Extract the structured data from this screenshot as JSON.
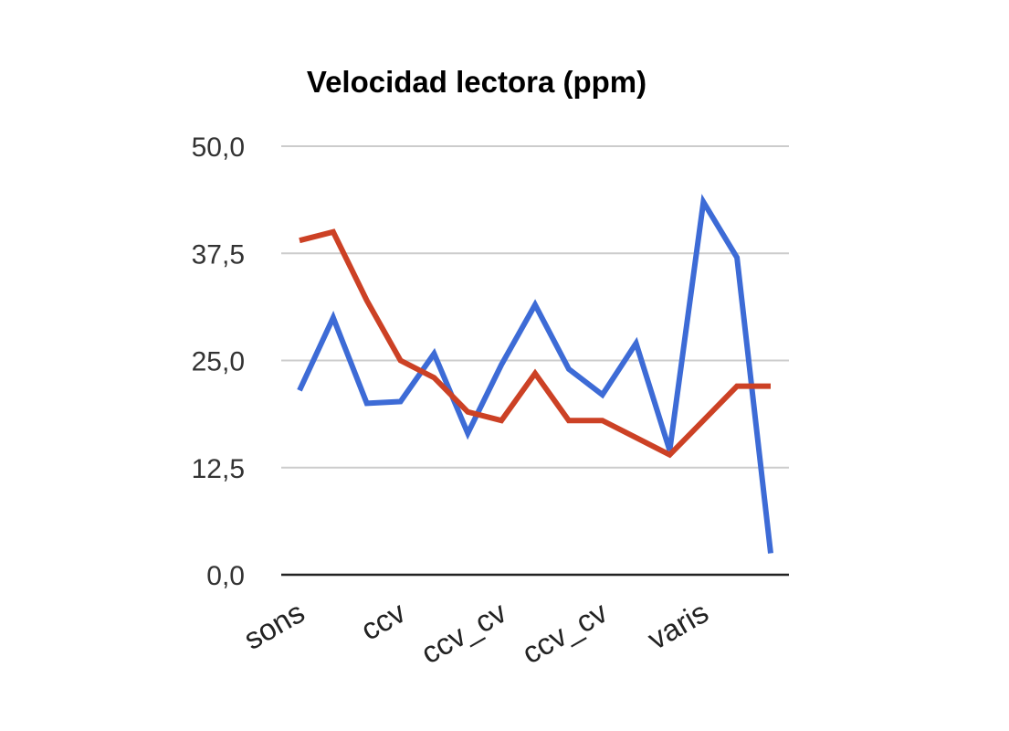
{
  "chart_data": {
    "type": "line",
    "title": "Velocidad lectora (ppm)",
    "xlabel": "",
    "ylabel": "",
    "ylim": [
      0,
      50
    ],
    "yticks": [
      "0,0",
      "12,5",
      "25,0",
      "37,5",
      "50,0"
    ],
    "ytick_values": [
      0,
      12.5,
      25,
      37.5,
      50
    ],
    "categories": [
      "sons",
      "",
      "",
      "ccv",
      "",
      "",
      "ccv_cv",
      "",
      "",
      "ccv_cv",
      "",
      "",
      "varis",
      "",
      ""
    ],
    "category_labels": [
      {
        "index": 0,
        "text": "sons"
      },
      {
        "index": 3,
        "text": "ccv"
      },
      {
        "index": 6,
        "text": "ccv_cv"
      },
      {
        "index": 9,
        "text": "ccv_cv"
      },
      {
        "index": 12,
        "text": "varis"
      }
    ],
    "grid": true,
    "series": [
      {
        "color": "#3d6bd6",
        "values": [
          21.5,
          30,
          20,
          20.2,
          25.8,
          16.5,
          24.5,
          31.5,
          24,
          21,
          27,
          14.5,
          43.5,
          37,
          2.5
        ]
      },
      {
        "color": "#cc4125",
        "values": [
          39,
          40,
          32,
          25,
          23,
          19,
          18,
          23.5,
          18,
          18,
          16,
          14,
          18,
          22,
          22
        ]
      }
    ]
  }
}
